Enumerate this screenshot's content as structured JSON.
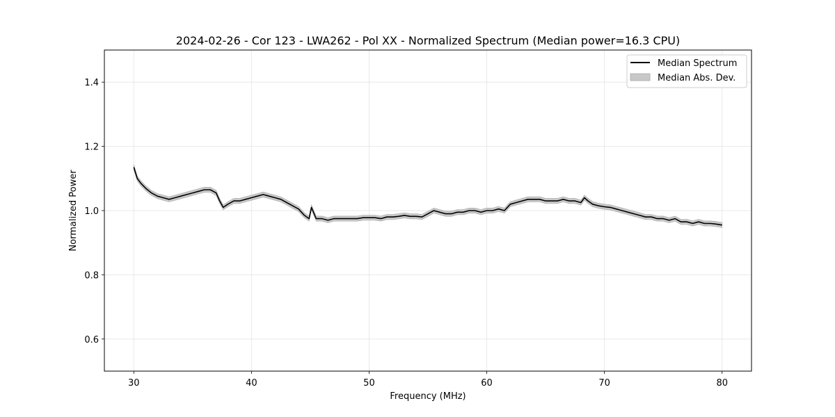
{
  "chart_data": {
    "type": "line",
    "title": "2024-02-26 - Cor 123 - LWA262 - Pol XX - Normalized Spectrum (Median power=16.3 CPU)",
    "xlabel": "Frequency (MHz)",
    "ylabel": "Normalized Power",
    "xlim": [
      27.5,
      82.5
    ],
    "ylim": [
      0.5,
      1.5
    ],
    "xticks": [
      30,
      40,
      50,
      60,
      70,
      80
    ],
    "yticks": [
      0.6,
      0.8,
      1.0,
      1.2,
      1.4
    ],
    "xtick_labels": [
      "30",
      "40",
      "50",
      "60",
      "70",
      "80"
    ],
    "ytick_labels": [
      "0.6",
      "0.8",
      "1.0",
      "1.2",
      "1.4"
    ],
    "grid": true,
    "legend_position": "top-right",
    "series": [
      {
        "name": "Median Spectrum",
        "color": "#000000",
        "x": [
          30.0,
          30.3,
          30.6,
          31.0,
          31.5,
          32.0,
          32.5,
          33.0,
          33.5,
          34.0,
          34.5,
          35.0,
          35.5,
          36.0,
          36.5,
          37.0,
          37.3,
          37.6,
          38.0,
          38.5,
          39.0,
          39.5,
          40.0,
          40.5,
          41.0,
          41.5,
          42.0,
          42.5,
          43.0,
          43.5,
          44.0,
          44.5,
          44.9,
          45.1,
          45.5,
          46.0,
          46.5,
          47.0,
          47.5,
          48.0,
          48.5,
          49.0,
          49.5,
          50.0,
          50.5,
          51.0,
          51.5,
          52.0,
          52.5,
          53.0,
          53.5,
          54.0,
          54.5,
          55.0,
          55.5,
          56.0,
          56.5,
          57.0,
          57.5,
          58.0,
          58.5,
          59.0,
          59.5,
          60.0,
          60.5,
          61.0,
          61.5,
          62.0,
          62.5,
          63.0,
          63.5,
          64.0,
          64.5,
          65.0,
          65.5,
          66.0,
          66.5,
          67.0,
          67.5,
          68.0,
          68.3,
          68.6,
          69.0,
          69.5,
          70.0,
          70.5,
          71.0,
          71.5,
          72.0,
          72.5,
          73.0,
          73.5,
          74.0,
          74.5,
          75.0,
          75.5,
          76.0,
          76.5,
          77.0,
          77.5,
          78.0,
          78.5,
          79.0,
          79.5,
          80.0
        ],
        "y": [
          1.135,
          1.1,
          1.085,
          1.07,
          1.055,
          1.045,
          1.04,
          1.035,
          1.04,
          1.045,
          1.05,
          1.055,
          1.06,
          1.065,
          1.065,
          1.055,
          1.03,
          1.01,
          1.02,
          1.03,
          1.03,
          1.035,
          1.04,
          1.045,
          1.05,
          1.045,
          1.04,
          1.035,
          1.025,
          1.015,
          1.005,
          0.985,
          0.975,
          1.01,
          0.975,
          0.975,
          0.97,
          0.975,
          0.975,
          0.975,
          0.975,
          0.975,
          0.978,
          0.978,
          0.978,
          0.975,
          0.98,
          0.98,
          0.982,
          0.985,
          0.982,
          0.982,
          0.98,
          0.99,
          1.0,
          0.995,
          0.99,
          0.99,
          0.995,
          0.995,
          1.0,
          1.0,
          0.995,
          1.0,
          1.0,
          1.005,
          1.0,
          1.02,
          1.025,
          1.03,
          1.035,
          1.035,
          1.035,
          1.03,
          1.03,
          1.03,
          1.035,
          1.03,
          1.03,
          1.025,
          1.04,
          1.03,
          1.02,
          1.015,
          1.012,
          1.01,
          1.005,
          1.0,
          0.995,
          0.99,
          0.985,
          0.98,
          0.98,
          0.975,
          0.975,
          0.97,
          0.975,
          0.965,
          0.965,
          0.96,
          0.965,
          0.96,
          0.96,
          0.958,
          0.955
        ]
      }
    ],
    "band": {
      "name": "Median Abs. Dev.",
      "color": "#c8c8c8",
      "halfwidth": 0.008
    }
  }
}
